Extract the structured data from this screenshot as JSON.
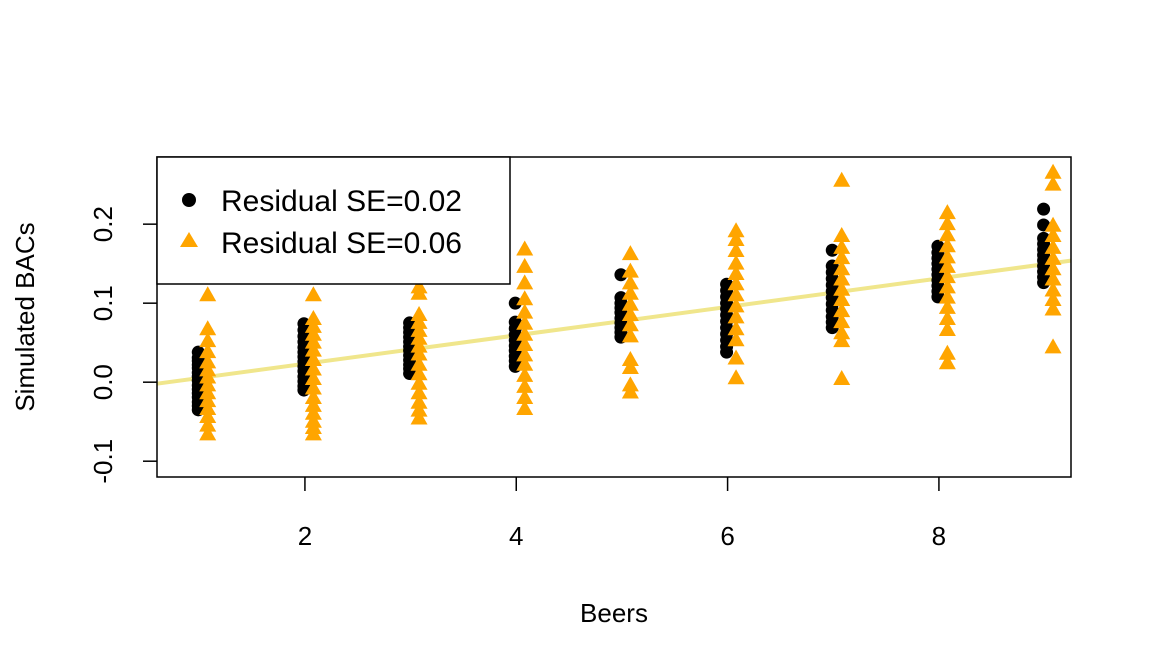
{
  "chart_data": {
    "type": "scatter",
    "title": "",
    "xlabel": "Beers",
    "ylabel": "Simulated BACs",
    "xlim": [
      0.6,
      9.25
    ],
    "ylim": [
      -0.12,
      0.285
    ],
    "x_ticks": [
      2,
      4,
      6,
      8
    ],
    "y_ticks": [
      -0.1,
      0.0,
      0.1,
      0.2
    ],
    "x_tick_labels": [
      "2",
      "4",
      "6",
      "8"
    ],
    "y_tick_labels": [
      "-0.1",
      "0.0",
      "0.1",
      "0.2"
    ],
    "grid": false,
    "legend": {
      "position": "top-left",
      "entries": [
        "Residual SE=0.02",
        "Residual SE=0.06"
      ]
    },
    "fit_line": {
      "intercept": -0.0127,
      "slope": 0.018,
      "color": "#F0E68C"
    },
    "series": [
      {
        "name": "Residual SE=0.02",
        "marker": "circle",
        "color": "#000000",
        "points": [
          [
            1,
            0.038
          ],
          [
            1,
            0.031
          ],
          [
            1,
            0.027
          ],
          [
            1,
            0.022
          ],
          [
            1,
            0.018
          ],
          [
            1,
            0.012
          ],
          [
            1,
            0.007
          ],
          [
            1,
            0.002
          ],
          [
            1,
            -0.004
          ],
          [
            1,
            -0.009
          ],
          [
            1,
            -0.014
          ],
          [
            1,
            -0.019
          ],
          [
            1,
            -0.025
          ],
          [
            1,
            -0.03
          ],
          [
            1,
            -0.035
          ],
          [
            2,
            0.074
          ],
          [
            2,
            0.066
          ],
          [
            2,
            0.058
          ],
          [
            2,
            0.051
          ],
          [
            2,
            0.044
          ],
          [
            2,
            0.038
          ],
          [
            2,
            0.032
          ],
          [
            2,
            0.026
          ],
          [
            2,
            0.02
          ],
          [
            2,
            0.014
          ],
          [
            2,
            0.007
          ],
          [
            2,
            0.001
          ],
          [
            2,
            -0.005
          ],
          [
            2,
            -0.01
          ],
          [
            3,
            0.075
          ],
          [
            3,
            0.069
          ],
          [
            3,
            0.063
          ],
          [
            3,
            0.057
          ],
          [
            3,
            0.051
          ],
          [
            3,
            0.045
          ],
          [
            3,
            0.04
          ],
          [
            3,
            0.034
          ],
          [
            3,
            0.028
          ],
          [
            3,
            0.022
          ],
          [
            3,
            0.017
          ],
          [
            3,
            0.011
          ],
          [
            4,
            0.1
          ],
          [
            4,
            0.076
          ],
          [
            4,
            0.068
          ],
          [
            4,
            0.06
          ],
          [
            4,
            0.053
          ],
          [
            4,
            0.046
          ],
          [
            4,
            0.04
          ],
          [
            4,
            0.033
          ],
          [
            4,
            0.027
          ],
          [
            4,
            0.02
          ],
          [
            5,
            0.136
          ],
          [
            5,
            0.107
          ],
          [
            5,
            0.1
          ],
          [
            5,
            0.094
          ],
          [
            5,
            0.088
          ],
          [
            5,
            0.081
          ],
          [
            5,
            0.075
          ],
          [
            5,
            0.069
          ],
          [
            5,
            0.063
          ],
          [
            5,
            0.057
          ],
          [
            6,
            0.124
          ],
          [
            6,
            0.116
          ],
          [
            6,
            0.108
          ],
          [
            6,
            0.1
          ],
          [
            6,
            0.093
          ],
          [
            6,
            0.085
          ],
          [
            6,
            0.077
          ],
          [
            6,
            0.069
          ],
          [
            6,
            0.061
          ],
          [
            6,
            0.053
          ],
          [
            6,
            0.045
          ],
          [
            6,
            0.038
          ],
          [
            7,
            0.167
          ],
          [
            7,
            0.147
          ],
          [
            7,
            0.139
          ],
          [
            7,
            0.131
          ],
          [
            7,
            0.123
          ],
          [
            7,
            0.115
          ],
          [
            7,
            0.107
          ],
          [
            7,
            0.099
          ],
          [
            7,
            0.091
          ],
          [
            7,
            0.083
          ],
          [
            7,
            0.076
          ],
          [
            7,
            0.069
          ],
          [
            8,
            0.172
          ],
          [
            8,
            0.164
          ],
          [
            8,
            0.157
          ],
          [
            8,
            0.15
          ],
          [
            8,
            0.143
          ],
          [
            8,
            0.136
          ],
          [
            8,
            0.129
          ],
          [
            8,
            0.122
          ],
          [
            8,
            0.115
          ],
          [
            8,
            0.108
          ],
          [
            9,
            0.219
          ],
          [
            9,
            0.199
          ],
          [
            9,
            0.182
          ],
          [
            9,
            0.175
          ],
          [
            9,
            0.168
          ],
          [
            9,
            0.161
          ],
          [
            9,
            0.154
          ],
          [
            9,
            0.147
          ],
          [
            9,
            0.14
          ],
          [
            9,
            0.133
          ],
          [
            9,
            0.126
          ]
        ]
      },
      {
        "name": "Residual SE=0.06",
        "marker": "triangle",
        "color": "#FFA500",
        "points": [
          [
            1,
            0.11
          ],
          [
            1,
            0.067
          ],
          [
            1,
            0.052
          ],
          [
            1,
            0.038
          ],
          [
            1,
            0.025
          ],
          [
            1,
            0.015
          ],
          [
            1,
            0.006
          ],
          [
            1,
            -0.004
          ],
          [
            1,
            -0.014
          ],
          [
            1,
            -0.024
          ],
          [
            1,
            -0.034
          ],
          [
            1,
            -0.044
          ],
          [
            1,
            -0.055
          ],
          [
            1,
            -0.066
          ],
          [
            2,
            0.11
          ],
          [
            2,
            0.08
          ],
          [
            2,
            0.07
          ],
          [
            2,
            0.06
          ],
          [
            2,
            0.05
          ],
          [
            2,
            0.04
          ],
          [
            2,
            0.028
          ],
          [
            2,
            0.016
          ],
          [
            2,
            0.004
          ],
          [
            2,
            -0.008
          ],
          [
            2,
            -0.02
          ],
          [
            2,
            -0.03
          ],
          [
            2,
            -0.04
          ],
          [
            2,
            -0.05
          ],
          [
            2,
            -0.058
          ],
          [
            2,
            -0.066
          ],
          [
            3,
            0.12
          ],
          [
            3,
            0.112
          ],
          [
            3,
            0.085
          ],
          [
            3,
            0.075
          ],
          [
            3,
            0.065
          ],
          [
            3,
            0.055
          ],
          [
            3,
            0.045
          ],
          [
            3,
            0.035
          ],
          [
            3,
            0.022
          ],
          [
            3,
            0.01
          ],
          [
            3,
            -0.002
          ],
          [
            3,
            -0.014
          ],
          [
            3,
            -0.026
          ],
          [
            3,
            -0.036
          ],
          [
            3,
            -0.046
          ],
          [
            4,
            0.168
          ],
          [
            4,
            0.146
          ],
          [
            4,
            0.125
          ],
          [
            4,
            0.105
          ],
          [
            4,
            0.088
          ],
          [
            4,
            0.074
          ],
          [
            4,
            0.06
          ],
          [
            4,
            0.047
          ],
          [
            4,
            0.034
          ],
          [
            4,
            0.022
          ],
          [
            4,
            0.008
          ],
          [
            4,
            -0.006
          ],
          [
            4,
            -0.02
          ],
          [
            4,
            -0.034
          ],
          [
            5,
            0.162
          ],
          [
            5,
            0.14
          ],
          [
            5,
            0.125
          ],
          [
            5,
            0.112
          ],
          [
            5,
            0.098
          ],
          [
            5,
            0.085
          ],
          [
            5,
            0.072
          ],
          [
            5,
            0.058
          ],
          [
            5,
            0.028
          ],
          [
            5,
            0.018
          ],
          [
            5,
            -0.004
          ],
          [
            5,
            -0.013
          ],
          [
            6,
            0.191
          ],
          [
            6,
            0.18
          ],
          [
            6,
            0.166
          ],
          [
            6,
            0.15
          ],
          [
            6,
            0.137
          ],
          [
            6,
            0.124
          ],
          [
            6,
            0.11
          ],
          [
            6,
            0.096
          ],
          [
            6,
            0.082
          ],
          [
            6,
            0.067
          ],
          [
            6,
            0.053
          ],
          [
            6,
            0.03
          ],
          [
            6,
            0.005
          ],
          [
            7,
            0.255
          ],
          [
            7,
            0.185
          ],
          [
            7,
            0.17
          ],
          [
            7,
            0.157
          ],
          [
            7,
            0.143
          ],
          [
            7,
            0.13
          ],
          [
            7,
            0.117
          ],
          [
            7,
            0.104
          ],
          [
            7,
            0.09
          ],
          [
            7,
            0.076
          ],
          [
            7,
            0.062
          ],
          [
            7,
            0.052
          ],
          [
            7,
            0.004
          ],
          [
            8,
            0.214
          ],
          [
            8,
            0.2
          ],
          [
            8,
            0.186
          ],
          [
            8,
            0.172
          ],
          [
            8,
            0.158
          ],
          [
            8,
            0.146
          ],
          [
            8,
            0.133
          ],
          [
            8,
            0.12
          ],
          [
            8,
            0.107
          ],
          [
            8,
            0.094
          ],
          [
            8,
            0.08
          ],
          [
            8,
            0.066
          ],
          [
            8,
            0.036
          ],
          [
            8,
            0.024
          ],
          [
            9,
            0.265
          ],
          [
            9,
            0.25
          ],
          [
            9,
            0.198
          ],
          [
            9,
            0.185
          ],
          [
            9,
            0.17
          ],
          [
            9,
            0.156
          ],
          [
            9,
            0.143
          ],
          [
            9,
            0.13
          ],
          [
            9,
            0.116
          ],
          [
            9,
            0.104
          ],
          [
            9,
            0.092
          ],
          [
            9,
            0.044
          ]
        ]
      }
    ]
  }
}
